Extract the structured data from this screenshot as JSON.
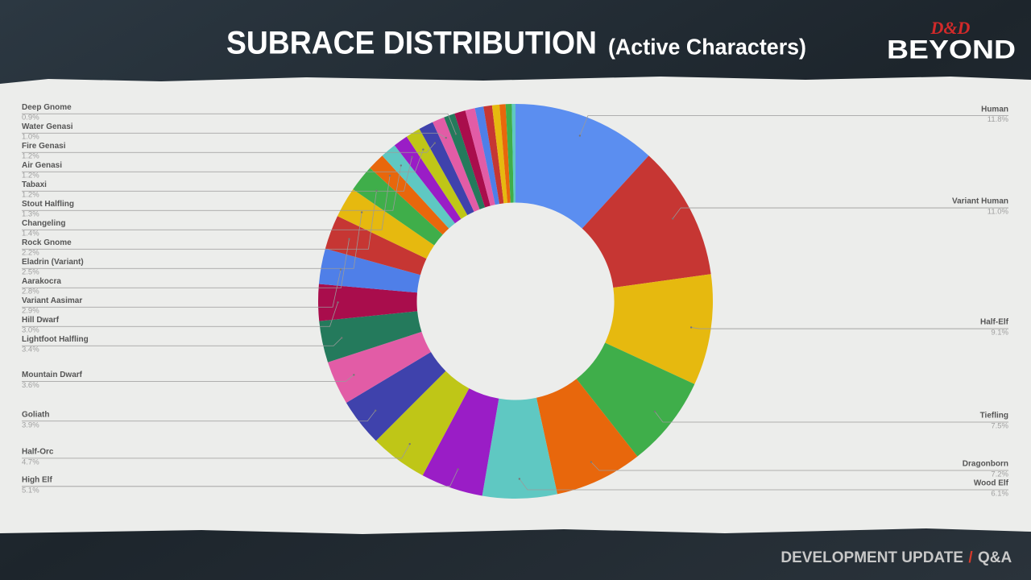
{
  "chart_data": {
    "type": "donut",
    "title": "SUBRACE DISTRIBUTION",
    "subtitle": "(Active Characters)",
    "categories": [
      "Human",
      "Variant Human",
      "Half-Elf",
      "Tiefling",
      "Dragonborn",
      "Wood Elf",
      "High Elf",
      "Half-Orc",
      "Goliath",
      "Mountain Dwarf",
      "Lightfoot Halfling",
      "Hill Dwarf",
      "Variant Aasimar",
      "Aarakocra",
      "Eladrin (Variant)",
      "Rock Gnome",
      "Changeling",
      "Stout Halfling",
      "Tabaxi",
      "Air Genasi",
      "Fire Genasi",
      "Water Genasi",
      "Deep Gnome",
      null,
      null,
      null,
      null,
      null,
      null,
      null,
      null
    ],
    "values": [
      11.8,
      11.0,
      9.1,
      7.5,
      7.2,
      6.1,
      5.1,
      4.7,
      3.9,
      3.6,
      3.4,
      3.0,
      2.9,
      2.8,
      2.5,
      2.2,
      1.4,
      1.3,
      1.2,
      1.2,
      1.2,
      1.0,
      0.9,
      0.9,
      0.8,
      0.7,
      0.7,
      0.6,
      0.5,
      0.5,
      0.3
    ],
    "value_labels": [
      "11.8%",
      "11.0%",
      "9.1%",
      "7.5%",
      "7.2%",
      "6.1%",
      "5.1%",
      "4.7%",
      "3.9%",
      "3.6%",
      "3.4%",
      "3.0%",
      "2.9%",
      "2.8%",
      "2.5%",
      "2.2%",
      "1.4%",
      "1.3%",
      "1.2%",
      "1.2%",
      "1.2%",
      "1.0%",
      "0.9%",
      null,
      null,
      null,
      null,
      null,
      null,
      null,
      null
    ],
    "colors": [
      "#5b8ef0",
      "#c63633",
      "#e6b90f",
      "#3fae4a",
      "#e8670c",
      "#5fc8c2",
      "#9a1dc6",
      "#bfc617",
      "#3f42ac",
      "#e25ca6",
      "#247a5c",
      "#a90d4c",
      "#4f7fe8",
      "#c63633",
      "#e6b90f",
      "#3fae4a",
      "#e8670c",
      "#5fc8c2",
      "#9a1dc6",
      "#bfc617",
      "#3f42ac",
      "#e25ca6",
      "#247a5c",
      "#a90d4c",
      "#e25ca6",
      "#4f7fe8",
      "#c63633",
      "#e6b90f",
      "#e8670c",
      "#3fae4a",
      "#5fc8c2"
    ],
    "donut_hole": 0.5,
    "legend": "labels"
  },
  "logo": {
    "top": "D&D",
    "bottom": "BEYOND"
  },
  "footer": {
    "left": "DEVELOPMENT UPDATE",
    "separator": "/",
    "right": "Q&A"
  }
}
